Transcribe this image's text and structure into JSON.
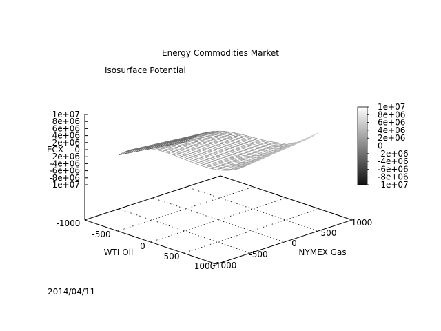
{
  "page": {
    "title": "Energy Commodities Market",
    "subtitle": "Isosurface Potential",
    "date": "2014/04/11"
  },
  "chart_data": {
    "type": "surface",
    "title": "Energy Commodities Market",
    "subtitle": "Isosurface Potential",
    "xlabel": "WTI Oil",
    "ylabel": "NYMEX Gas",
    "zlabel": "ECX",
    "xlim": [
      -1000,
      1000
    ],
    "ylim": [
      -1000,
      1000
    ],
    "zlim": [
      -10000000,
      10000000
    ],
    "x_ticks": [
      "-1000",
      "-500",
      "0",
      "500",
      "1000"
    ],
    "y_ticks": [
      "-1000",
      "-500",
      "0",
      "500",
      "1000"
    ],
    "z_ticks": [
      "1e+07",
      "8e+06",
      "6e+06",
      "4e+06",
      "2e+06",
      "0",
      "-2e+06",
      "-4e+06",
      "-6e+06",
      "-8e+06",
      "-1e+07"
    ],
    "colorbar_ticks": [
      "1e+07",
      "8e+06",
      "6e+06",
      "4e+06",
      "2e+06",
      "0",
      "-2e+06",
      "-4e+06",
      "-6e+06",
      "-8e+06",
      "-1e+07"
    ],
    "colormap": "grayscale",
    "grid": true,
    "surface_samples": [
      {
        "x": -1000,
        "y": -300,
        "z": -5000000
      },
      {
        "x": -500,
        "y": 0,
        "z": 0
      },
      {
        "x": 0,
        "y": 0,
        "z": 0
      },
      {
        "x": 500,
        "y": 0,
        "z": 0
      },
      {
        "x": 1000,
        "y": 300,
        "z": 5000000
      }
    ]
  },
  "colors": {
    "axis": "#000000",
    "grid": "#000000",
    "mesh_dark": "#444444",
    "mesh_light": "#eeeeee"
  }
}
